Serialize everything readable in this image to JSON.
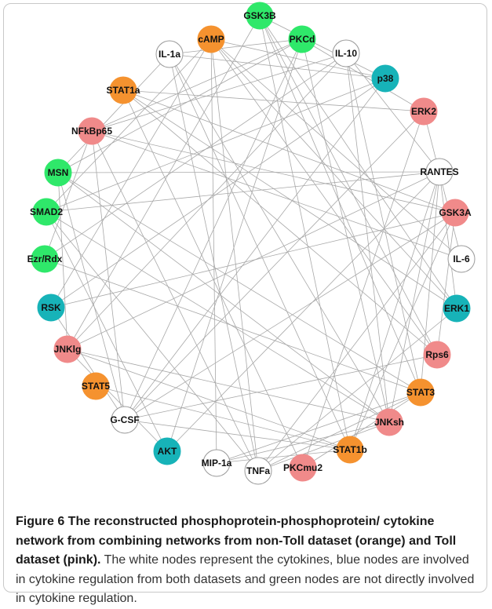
{
  "nodes": [
    {
      "label": "cAMP",
      "color": "#f5922f"
    },
    {
      "label": "GSK3B",
      "color": "#2fe86a"
    },
    {
      "label": "PKCd",
      "color": "#2fe86a"
    },
    {
      "label": "IL-10",
      "color": "#ffffff"
    },
    {
      "label": "p38",
      "color": "#17b3b8"
    },
    {
      "label": "ERK2",
      "color": "#f08a8a"
    },
    {
      "label": "RANTES",
      "color": "#ffffff"
    },
    {
      "label": "GSK3A",
      "color": "#f08a8a"
    },
    {
      "label": "IL-6",
      "color": "#ffffff"
    },
    {
      "label": "ERK1",
      "color": "#17b3b8"
    },
    {
      "label": "Rps6",
      "color": "#f08a8a"
    },
    {
      "label": "STAT3",
      "color": "#f5922f"
    },
    {
      "label": "JNKsh",
      "color": "#f08a8a"
    },
    {
      "label": "STAT1b",
      "color": "#f5922f"
    },
    {
      "label": "PKCmu2",
      "color": "#f08a8a"
    },
    {
      "label": "TNFa",
      "color": "#ffffff"
    },
    {
      "label": "MIP-1a",
      "color": "#ffffff"
    },
    {
      "label": "AKT",
      "color": "#17b3b8"
    },
    {
      "label": "G-CSF",
      "color": "#ffffff"
    },
    {
      "label": "STAT5",
      "color": "#f5922f"
    },
    {
      "label": "JNKlg",
      "color": "#f08a8a"
    },
    {
      "label": "RSK",
      "color": "#17b3b8"
    },
    {
      "label": "Ezr/Rdx",
      "color": "#2fe86a"
    },
    {
      "label": "SMAD2",
      "color": "#2fe86a"
    },
    {
      "label": "MSN",
      "color": "#2fe86a"
    },
    {
      "label": "NFkBp65",
      "color": "#f08a8a"
    },
    {
      "label": "STAT1a",
      "color": "#f5922f"
    },
    {
      "label": "IL-1a",
      "color": "#ffffff"
    }
  ],
  "caption": {
    "bold": "Figure 6 The reconstructed phosphoprotein-phosphoprotein/ cytokine network from combining networks from non-Toll dataset (orange) and Toll dataset (pink).",
    "text": "The white nodes represent the cytokines, blue nodes are involved in cytokine regulation from both datasets and green nodes are not directly involved in cytokine regulation."
  }
}
